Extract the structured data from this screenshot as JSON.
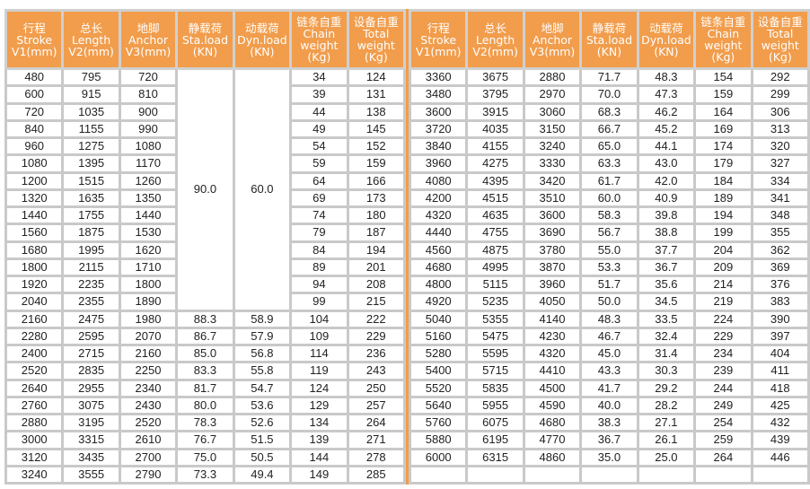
{
  "headers": [
    {
      "zh": "行程",
      "en": "Stroke",
      "unit": "V1(mm)"
    },
    {
      "zh": "总长",
      "en": "Length",
      "unit": "V2(mm)"
    },
    {
      "zh": "地脚",
      "en": "Anchor",
      "unit": "V3(mm)"
    },
    {
      "zh": "静载荷",
      "en": "Sta.load",
      "unit": "(KN)"
    },
    {
      "zh": "动载荷",
      "en": "Dyn.load",
      "unit": "(KN)"
    },
    {
      "zh": "链条自重",
      "en": "Chain",
      "en2": "weight",
      "unit": "(Kg)"
    },
    {
      "zh": "设备自重",
      "en": "Total",
      "en2": "weight",
      "unit": "(Kg)"
    }
  ],
  "left_merged": {
    "sta": "90.0",
    "dyn": "60.0",
    "rows": 14
  },
  "left_rows": [
    [
      "480",
      "795",
      "720",
      null,
      null,
      "34",
      "124"
    ],
    [
      "600",
      "915",
      "810",
      null,
      null,
      "39",
      "131"
    ],
    [
      "720",
      "1035",
      "900",
      null,
      null,
      "44",
      "138"
    ],
    [
      "840",
      "1155",
      "990",
      null,
      null,
      "49",
      "145"
    ],
    [
      "960",
      "1275",
      "1080",
      null,
      null,
      "54",
      "152"
    ],
    [
      "1080",
      "1395",
      "1170",
      null,
      null,
      "59",
      "159"
    ],
    [
      "1200",
      "1515",
      "1260",
      null,
      null,
      "64",
      "166"
    ],
    [
      "1320",
      "1635",
      "1350",
      null,
      null,
      "69",
      "173"
    ],
    [
      "1440",
      "1755",
      "1440",
      null,
      null,
      "74",
      "180"
    ],
    [
      "1560",
      "1875",
      "1530",
      null,
      null,
      "79",
      "187"
    ],
    [
      "1680",
      "1995",
      "1620",
      null,
      null,
      "84",
      "194"
    ],
    [
      "1800",
      "2115",
      "1710",
      null,
      null,
      "89",
      "201"
    ],
    [
      "1920",
      "2235",
      "1800",
      null,
      null,
      "94",
      "208"
    ],
    [
      "2040",
      "2355",
      "1890",
      null,
      null,
      "99",
      "215"
    ],
    [
      "2160",
      "2475",
      "1980",
      "88.3",
      "58.9",
      "104",
      "222"
    ],
    [
      "2280",
      "2595",
      "2070",
      "86.7",
      "57.9",
      "109",
      "229"
    ],
    [
      "2400",
      "2715",
      "2160",
      "85.0",
      "56.8",
      "114",
      "236"
    ],
    [
      "2520",
      "2835",
      "2250",
      "83.3",
      "55.8",
      "119",
      "243"
    ],
    [
      "2640",
      "2955",
      "2340",
      "81.7",
      "54.7",
      "124",
      "250"
    ],
    [
      "2760",
      "3075",
      "2430",
      "80.0",
      "53.6",
      "129",
      "257"
    ],
    [
      "2880",
      "3195",
      "2520",
      "78.3",
      "52.6",
      "134",
      "264"
    ],
    [
      "3000",
      "3315",
      "2610",
      "76.7",
      "51.5",
      "139",
      "271"
    ],
    [
      "3120",
      "3435",
      "2700",
      "75.0",
      "50.5",
      "144",
      "278"
    ],
    [
      "3240",
      "3555",
      "2790",
      "73.3",
      "49.4",
      "149",
      "285"
    ]
  ],
  "right_rows": [
    [
      "3360",
      "3675",
      "2880",
      "71.7",
      "48.3",
      "154",
      "292"
    ],
    [
      "3480",
      "3795",
      "2970",
      "70.0",
      "47.3",
      "159",
      "299"
    ],
    [
      "3600",
      "3915",
      "3060",
      "68.3",
      "46.2",
      "164",
      "306"
    ],
    [
      "3720",
      "4035",
      "3150",
      "66.7",
      "45.2",
      "169",
      "313"
    ],
    [
      "3840",
      "4155",
      "3240",
      "65.0",
      "44.1",
      "174",
      "320"
    ],
    [
      "3960",
      "4275",
      "3330",
      "63.3",
      "43.0",
      "179",
      "327"
    ],
    [
      "4080",
      "4395",
      "3420",
      "61.7",
      "42.0",
      "184",
      "334"
    ],
    [
      "4200",
      "4515",
      "3510",
      "60.0",
      "40.9",
      "189",
      "341"
    ],
    [
      "4320",
      "4635",
      "3600",
      "58.3",
      "39.8",
      "194",
      "348"
    ],
    [
      "4440",
      "4755",
      "3690",
      "56.7",
      "38.8",
      "199",
      "355"
    ],
    [
      "4560",
      "4875",
      "3780",
      "55.0",
      "37.7",
      "204",
      "362"
    ],
    [
      "4680",
      "4995",
      "3870",
      "53.3",
      "36.7",
      "209",
      "369"
    ],
    [
      "4800",
      "5115",
      "3960",
      "51.7",
      "35.6",
      "214",
      "376"
    ],
    [
      "4920",
      "5235",
      "4050",
      "50.0",
      "34.5",
      "219",
      "383"
    ],
    [
      "5040",
      "5355",
      "4140",
      "48.3",
      "33.5",
      "224",
      "390"
    ],
    [
      "5160",
      "5475",
      "4230",
      "46.7",
      "32.4",
      "229",
      "397"
    ],
    [
      "5280",
      "5595",
      "4320",
      "45.0",
      "31.4",
      "234",
      "404"
    ],
    [
      "5400",
      "5715",
      "4410",
      "43.3",
      "30.3",
      "239",
      "411"
    ],
    [
      "5520",
      "5835",
      "4500",
      "41.7",
      "29.2",
      "244",
      "418"
    ],
    [
      "5640",
      "5955",
      "4590",
      "40.0",
      "28.2",
      "249",
      "425"
    ],
    [
      "5760",
      "6075",
      "4680",
      "38.3",
      "27.1",
      "254",
      "432"
    ],
    [
      "5880",
      "6195",
      "4770",
      "36.7",
      "26.1",
      "259",
      "439"
    ],
    [
      "6000",
      "6315",
      "4860",
      "35.0",
      "25.0",
      "264",
      "446"
    ],
    [
      "",
      "",
      "",
      "",
      "",
      "",
      ""
    ]
  ],
  "colors": {
    "header_bg": "#f19d4c",
    "grid": "#c9c9c9",
    "separator": "#f19d4c"
  }
}
